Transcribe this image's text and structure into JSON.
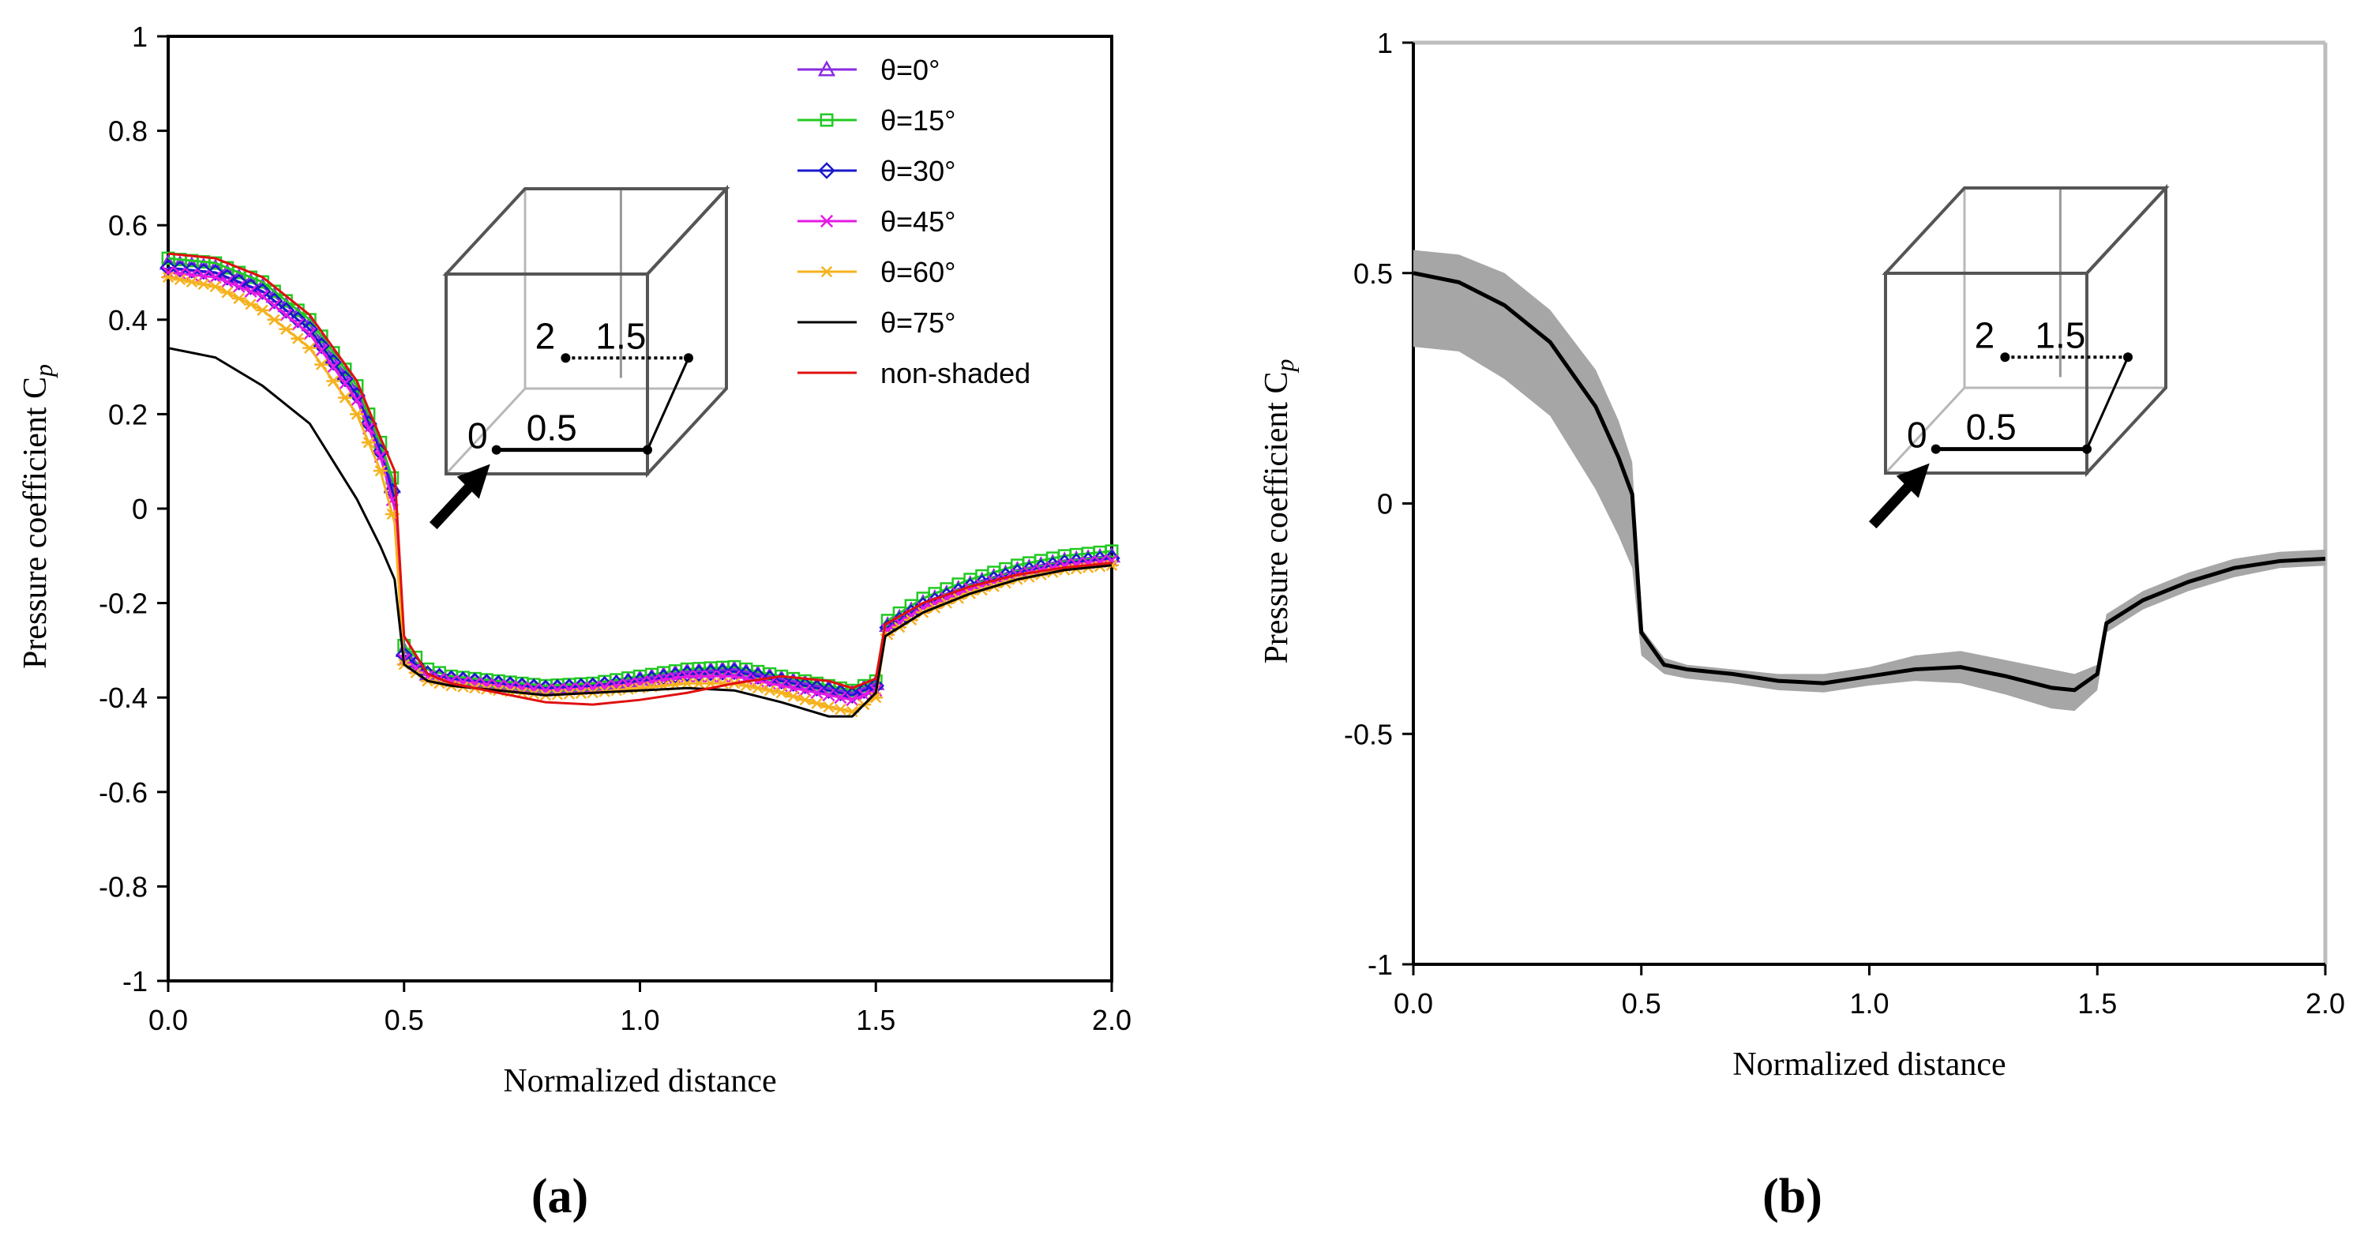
{
  "chart_data": [
    {
      "panel": "a",
      "type": "line",
      "caption": "(a)",
      "xlabel": "Normalized distance",
      "ylabel": "Pressure coefficient C",
      "ylabel_sub": "p",
      "xlim": [
        0,
        2
      ],
      "ylim": [
        -1,
        1
      ],
      "xticks": [
        "0.0",
        "0.5",
        "1.0",
        "1.5",
        "2.0"
      ],
      "xtick_values": [
        0,
        0.5,
        1,
        1.5,
        2
      ],
      "yticks": [
        "1",
        "0.8",
        "0.6",
        "0.4",
        "0.2",
        "0",
        "-0.2",
        "-0.4",
        "-0.6",
        "-0.8",
        "-1"
      ],
      "ytick_values": [
        1,
        0.8,
        0.6,
        0.4,
        0.2,
        0,
        -0.2,
        -0.4,
        -0.6,
        -0.8,
        -1
      ],
      "inset_labels": [
        "2",
        "1.5",
        "0",
        "0.5"
      ],
      "legend_position": "top-right",
      "x": [
        0,
        0.1,
        0.2,
        0.3,
        0.4,
        0.45,
        0.48,
        0.5,
        0.55,
        0.6,
        0.7,
        0.8,
        0.9,
        1.0,
        1.1,
        1.2,
        1.3,
        1.4,
        1.45,
        1.5,
        1.52,
        1.6,
        1.7,
        1.8,
        1.9,
        2.0
      ],
      "series": [
        {
          "name": "θ=0°",
          "color": "#8a2be2",
          "marker": "triangle",
          "values": [
            0.52,
            0.51,
            0.47,
            0.39,
            0.25,
            0.13,
            0.03,
            -0.3,
            -0.35,
            -0.36,
            -0.37,
            -0.38,
            -0.375,
            -0.36,
            -0.345,
            -0.34,
            -0.36,
            -0.38,
            -0.39,
            -0.37,
            -0.25,
            -0.2,
            -0.16,
            -0.13,
            -0.11,
            -0.1
          ]
        },
        {
          "name": "θ=15°",
          "color": "#22c922",
          "marker": "square",
          "values": [
            0.53,
            0.52,
            0.48,
            0.4,
            0.26,
            0.14,
            0.05,
            -0.29,
            -0.34,
            -0.355,
            -0.365,
            -0.375,
            -0.37,
            -0.355,
            -0.34,
            -0.335,
            -0.355,
            -0.375,
            -0.385,
            -0.365,
            -0.24,
            -0.19,
            -0.15,
            -0.12,
            -0.1,
            -0.09
          ]
        },
        {
          "name": "θ=30°",
          "color": "#1a1acd",
          "marker": "diamond",
          "values": [
            0.51,
            0.5,
            0.46,
            0.38,
            0.24,
            0.12,
            0.02,
            -0.31,
            -0.35,
            -0.36,
            -0.37,
            -0.38,
            -0.375,
            -0.365,
            -0.35,
            -0.345,
            -0.365,
            -0.385,
            -0.395,
            -0.375,
            -0.255,
            -0.205,
            -0.165,
            -0.135,
            -0.115,
            -0.105
          ]
        },
        {
          "name": "θ=45°",
          "color": "#e41ae4",
          "marker": "x",
          "values": [
            0.5,
            0.49,
            0.45,
            0.37,
            0.23,
            0.11,
            0.0,
            -0.32,
            -0.355,
            -0.365,
            -0.375,
            -0.385,
            -0.38,
            -0.37,
            -0.355,
            -0.355,
            -0.375,
            -0.395,
            -0.405,
            -0.385,
            -0.26,
            -0.21,
            -0.17,
            -0.14,
            -0.12,
            -0.11
          ]
        },
        {
          "name": "θ=60°",
          "color": "#f5b21f",
          "marker": "star",
          "values": [
            0.49,
            0.47,
            0.42,
            0.34,
            0.2,
            0.08,
            -0.03,
            -0.33,
            -0.365,
            -0.375,
            -0.385,
            -0.395,
            -0.39,
            -0.38,
            -0.37,
            -0.37,
            -0.39,
            -0.42,
            -0.43,
            -0.4,
            -0.27,
            -0.22,
            -0.18,
            -0.15,
            -0.13,
            -0.12
          ]
        },
        {
          "name": "θ=75°",
          "color": "#000000",
          "marker": "none",
          "values": [
            0.34,
            0.32,
            0.26,
            0.18,
            0.02,
            -0.08,
            -0.15,
            -0.33,
            -0.365,
            -0.375,
            -0.385,
            -0.395,
            -0.39,
            -0.385,
            -0.38,
            -0.385,
            -0.41,
            -0.44,
            -0.44,
            -0.39,
            -0.27,
            -0.22,
            -0.18,
            -0.15,
            -0.13,
            -0.12
          ]
        },
        {
          "name": "non-shaded",
          "color": "#e01010",
          "marker": "none",
          "values": [
            0.54,
            0.53,
            0.49,
            0.41,
            0.27,
            0.15,
            0.08,
            -0.27,
            -0.35,
            -0.37,
            -0.39,
            -0.41,
            -0.415,
            -0.405,
            -0.39,
            -0.37,
            -0.355,
            -0.365,
            -0.38,
            -0.36,
            -0.245,
            -0.2,
            -0.165,
            -0.14,
            -0.125,
            -0.115
          ]
        }
      ]
    },
    {
      "panel": "b",
      "type": "area",
      "caption": "(b)",
      "xlabel": "Normalized distance",
      "ylabel": "Pressure coefficient C",
      "ylabel_sub": "p",
      "xlim": [
        0,
        2
      ],
      "ylim": [
        -1,
        1
      ],
      "xticks": [
        "0.0",
        "0.5",
        "1.0",
        "1.5",
        "2.0"
      ],
      "xtick_values": [
        0,
        0.5,
        1,
        1.5,
        2
      ],
      "yticks": [
        "1",
        "0.5",
        "0",
        "-0.5",
        "-1"
      ],
      "ytick_values": [
        1,
        0.5,
        0,
        -0.5,
        -1
      ],
      "inset_labels": [
        "2",
        "1.5",
        "0",
        "0.5"
      ],
      "x": [
        0,
        0.1,
        0.2,
        0.3,
        0.4,
        0.45,
        0.48,
        0.5,
        0.55,
        0.6,
        0.7,
        0.8,
        0.9,
        1.0,
        1.1,
        1.2,
        1.3,
        1.4,
        1.45,
        1.5,
        1.52,
        1.6,
        1.7,
        1.8,
        1.9,
        2.0
      ],
      "mean": [
        0.5,
        0.48,
        0.43,
        0.35,
        0.21,
        0.1,
        0.02,
        -0.28,
        -0.35,
        -0.36,
        -0.37,
        -0.385,
        -0.39,
        -0.375,
        -0.36,
        -0.355,
        -0.375,
        -0.4,
        -0.405,
        -0.37,
        -0.26,
        -0.21,
        -0.17,
        -0.14,
        -0.125,
        -0.12
      ],
      "upper": [
        0.55,
        0.54,
        0.5,
        0.42,
        0.29,
        0.18,
        0.09,
        -0.27,
        -0.335,
        -0.35,
        -0.36,
        -0.37,
        -0.37,
        -0.355,
        -0.33,
        -0.32,
        -0.34,
        -0.36,
        -0.37,
        -0.35,
        -0.24,
        -0.19,
        -0.15,
        -0.12,
        -0.105,
        -0.1
      ],
      "lower": [
        0.34,
        0.33,
        0.27,
        0.19,
        0.03,
        -0.07,
        -0.14,
        -0.33,
        -0.37,
        -0.38,
        -0.39,
        -0.405,
        -0.41,
        -0.395,
        -0.385,
        -0.39,
        -0.415,
        -0.445,
        -0.45,
        -0.405,
        -0.28,
        -0.23,
        -0.19,
        -0.16,
        -0.14,
        -0.135
      ],
      "band_color": "#a6a6a6",
      "line_color": "#000000"
    }
  ]
}
